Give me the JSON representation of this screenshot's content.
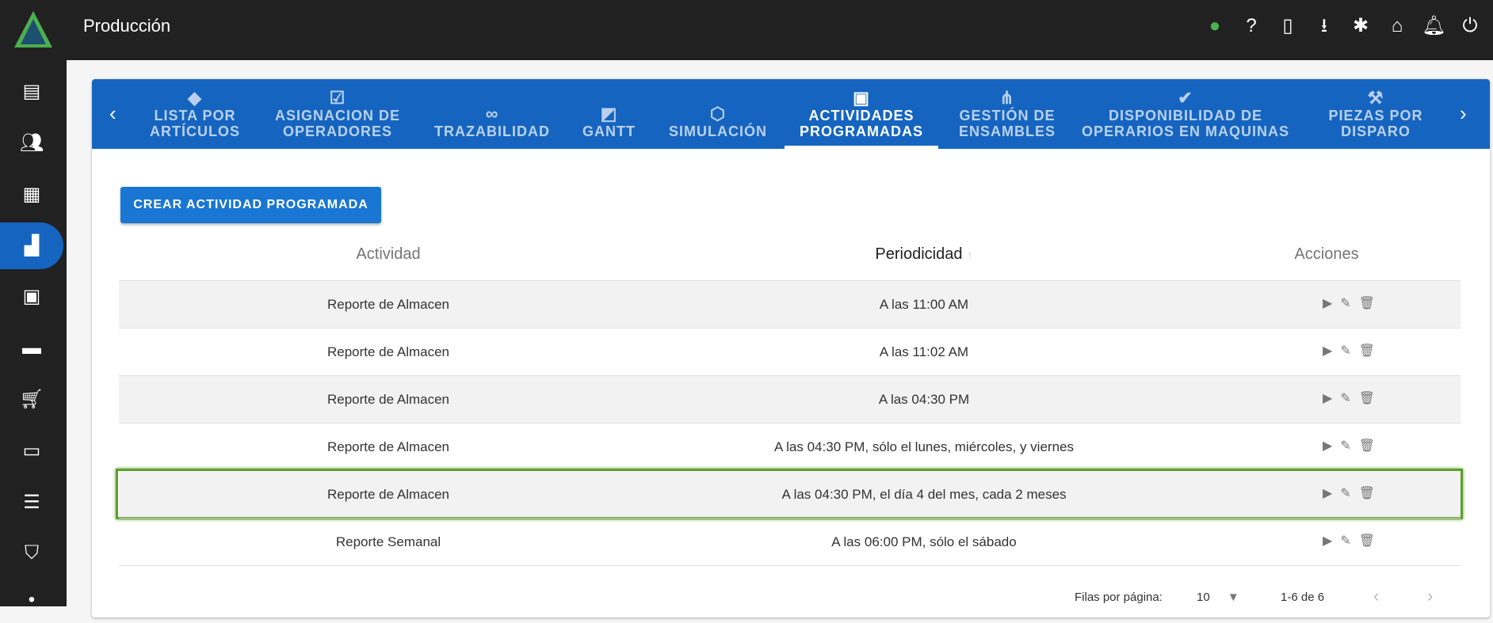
{
  "header": {
    "title": "Producción",
    "icons": [
      "globe-icon",
      "help-icon",
      "book-icon",
      "download-icon",
      "bug-icon",
      "home-icon",
      "bell-icon",
      "power-icon"
    ]
  },
  "sidebar": {
    "icons": [
      "newspaper-icon",
      "people-icon",
      "warehouse-icon",
      "factory-icon",
      "certificate-icon",
      "toolbox-icon",
      "cart-icon",
      "cash-register-icon",
      "sliders-icon",
      "shield-icon",
      "dot-icon"
    ],
    "active": 3
  },
  "tabs": [
    {
      "label": "LISTA POR ARTÍCULOS",
      "icon": "tag-icon"
    },
    {
      "label": "ASIGNACION DE OPERADORES",
      "icon": "checklist-icon"
    },
    {
      "label": "TRAZABILIDAD",
      "icon": "route-icon"
    },
    {
      "label": "GANTT",
      "icon": "chart-icon"
    },
    {
      "label": "SIMULACIÓN",
      "icon": "cube-icon"
    },
    {
      "label": "ACTIVIDADES PROGRAMADAS",
      "icon": "calendar-clock-icon",
      "active": true
    },
    {
      "label": "GESTIÓN DE ENSAMBLES",
      "icon": "hub-icon"
    },
    {
      "label": "DISPONIBILIDAD DE OPERARIOS EN MAQUINAS",
      "icon": "check-circle-icon"
    },
    {
      "label": "PIEZAS POR DISPARO",
      "icon": "wrench-clock-icon"
    }
  ],
  "create_button": "CREAR ACTIVIDAD PROGRAMADA",
  "table": {
    "headers": {
      "activity": "Actividad",
      "periodicity": "Periodicidad",
      "actions": "Acciones"
    },
    "rows": [
      {
        "activity": "Reporte de Almacen",
        "periodicity": "A las 11:00 AM"
      },
      {
        "activity": "Reporte de Almacen",
        "periodicity": "A las 11:02 AM"
      },
      {
        "activity": "Reporte de Almacen",
        "periodicity": "A las 04:30 PM"
      },
      {
        "activity": "Reporte de Almacen",
        "periodicity": "A las 04:30 PM, sólo el lunes, miércoles, y viernes"
      },
      {
        "activity": "Reporte de Almacen",
        "periodicity": "A las 04:30 PM, el día 4 del mes, cada 2 meses",
        "highlighted": true
      },
      {
        "activity": "Reporte Semanal",
        "periodicity": "A las 06:00 PM, sólo el sábado"
      }
    ]
  },
  "pagination": {
    "rows_label": "Filas por página:",
    "rows_value": "10",
    "range": "1-6 de 6"
  },
  "colors": {
    "accent": "#1565c0",
    "highlight": "#5e9e2e",
    "topbar": "#212121"
  }
}
